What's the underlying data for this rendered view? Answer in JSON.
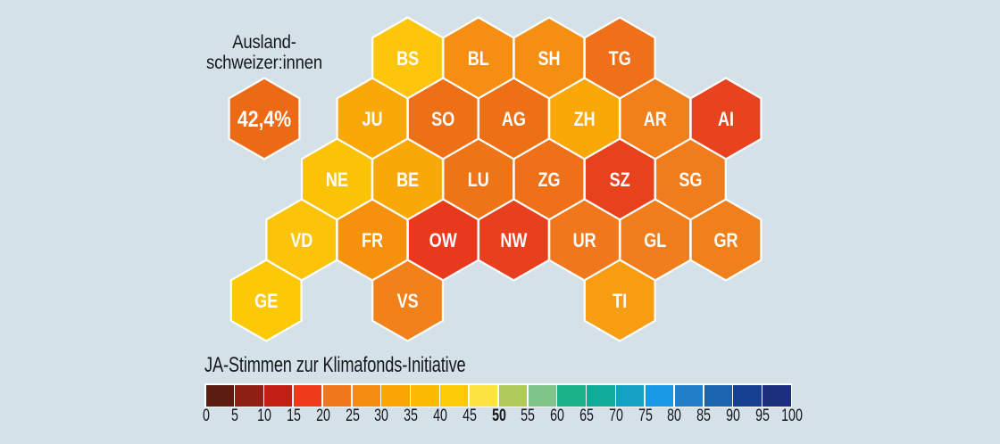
{
  "background_color": "#D5E1E8",
  "annotation": {
    "label_line1": "Ausland-",
    "label_line2": "schweizer:innen",
    "value": "42,4%",
    "hex_color": "#EC6A15"
  },
  "chart_data": {
    "type": "heatmap",
    "subtype": "hexagonal-tile-cartogram-switzerland-cantons",
    "title": "JA-Stimmen zur Klimafonds-Initiative",
    "legend_position": "bottom",
    "value_unit": "percent JA-Stimmen",
    "annotation_value_auslandschweizer": "42,4%",
    "cantons": [
      {
        "code": "BS",
        "row": 0,
        "col": 4,
        "color": "#FDC60C",
        "approx_value": "40-45"
      },
      {
        "code": "BL",
        "row": 0,
        "col": 6,
        "color": "#F58E12",
        "approx_value": "25-30"
      },
      {
        "code": "SH",
        "row": 0,
        "col": 8,
        "color": "#F58F11",
        "approx_value": "25-30"
      },
      {
        "code": "TG",
        "row": 0,
        "col": 10,
        "color": "#EE711A",
        "approx_value": "20-25"
      },
      {
        "code": "JU",
        "row": 1,
        "col": 3,
        "color": "#F9A807",
        "approx_value": "30-35"
      },
      {
        "code": "SO",
        "row": 1,
        "col": 5,
        "color": "#ED7016",
        "approx_value": "20-25"
      },
      {
        "code": "AG",
        "row": 1,
        "col": 7,
        "color": "#ED7016",
        "approx_value": "20-25"
      },
      {
        "code": "ZH",
        "row": 1,
        "col": 9,
        "color": "#F9A807",
        "approx_value": "30-35"
      },
      {
        "code": "AR",
        "row": 1,
        "col": 11,
        "color": "#F1801B",
        "approx_value": "25-30"
      },
      {
        "code": "AI",
        "row": 1,
        "col": 13,
        "color": "#E8421E",
        "approx_value": "15-20"
      },
      {
        "code": "NE",
        "row": 2,
        "col": 2,
        "color": "#FBC306",
        "approx_value": "35-40"
      },
      {
        "code": "BE",
        "row": 2,
        "col": 4,
        "color": "#F9A907",
        "approx_value": "30-35"
      },
      {
        "code": "LU",
        "row": 2,
        "col": 6,
        "color": "#EE7418",
        "approx_value": "20-25"
      },
      {
        "code": "ZG",
        "row": 2,
        "col": 8,
        "color": "#EE7018",
        "approx_value": "20-25"
      },
      {
        "code": "SZ",
        "row": 2,
        "col": 10,
        "color": "#E8421D",
        "approx_value": "15-20"
      },
      {
        "code": "SG",
        "row": 2,
        "col": 12,
        "color": "#F07D1D",
        "approx_value": "25-30"
      },
      {
        "code": "VD",
        "row": 3,
        "col": 1,
        "color": "#FBC30A",
        "approx_value": "35-40"
      },
      {
        "code": "FR",
        "row": 3,
        "col": 3,
        "color": "#F6910E",
        "approx_value": "25-30"
      },
      {
        "code": "OW",
        "row": 3,
        "col": 5,
        "color": "#E8391D",
        "approx_value": "15-20"
      },
      {
        "code": "NW",
        "row": 3,
        "col": 7,
        "color": "#E83F1E",
        "approx_value": "15-20"
      },
      {
        "code": "UR",
        "row": 3,
        "col": 9,
        "color": "#F0771B",
        "approx_value": "20-25"
      },
      {
        "code": "GL",
        "row": 3,
        "col": 11,
        "color": "#F07E1C",
        "approx_value": "25-30"
      },
      {
        "code": "GR",
        "row": 3,
        "col": 13,
        "color": "#F0801C",
        "approx_value": "25-30"
      },
      {
        "code": "GE",
        "row": 4,
        "col": 0,
        "color": "#FDC906",
        "approx_value": "40-45"
      },
      {
        "code": "VS",
        "row": 4,
        "col": 4,
        "color": "#F2811B",
        "approx_value": "25-30"
      },
      {
        "code": "TI",
        "row": 4,
        "col": 10,
        "color": "#F89D12",
        "approx_value": "30-35"
      }
    ],
    "legend": {
      "title": "JA-Stimmen zur Klimafonds-Initiative",
      "ticks": [
        "0",
        "5",
        "10",
        "15",
        "20",
        "25",
        "30",
        "35",
        "40",
        "45",
        "50",
        "55",
        "60",
        "65",
        "70",
        "75",
        "80",
        "85",
        "90",
        "95",
        "100"
      ],
      "bold_tick": "50",
      "axis_range": [
        0,
        100
      ],
      "swatch_colors": [
        "#5B1D11",
        "#8F2015",
        "#C22014",
        "#EC3C1C",
        "#F0771B",
        "#F58E10",
        "#FAA506",
        "#FDBA02",
        "#FDCB06",
        "#FBE440",
        "#AFCA5B",
        "#7FC489",
        "#1CB287",
        "#10AC98",
        "#14A0C2",
        "#1899E6",
        "#2380C8",
        "#1A64B0",
        "#15418F",
        "#1B2F7D"
      ]
    }
  }
}
